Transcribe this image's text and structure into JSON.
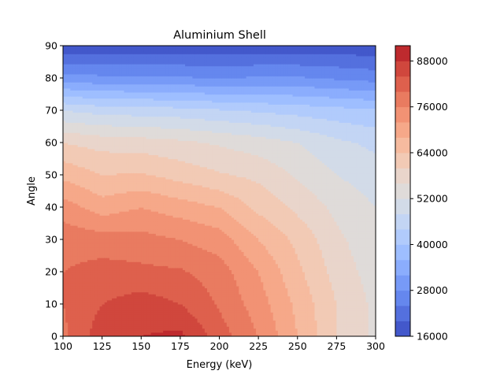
{
  "chart_data": {
    "type": "contourf",
    "title": "Aluminium Shell",
    "xlabel": "Energy (keV)",
    "ylabel": "Angle",
    "xlim": [
      100,
      300
    ],
    "ylim": [
      0,
      90
    ],
    "xticks": [
      "100",
      "125",
      "150",
      "175",
      "200",
      "225",
      "250",
      "275",
      "300"
    ],
    "yticks": [
      "0",
      "10",
      "20",
      "30",
      "40",
      "50",
      "60",
      "70",
      "80",
      "90"
    ],
    "x": [
      100,
      125,
      150,
      175,
      200,
      225,
      250,
      275,
      300
    ],
    "y": [
      0,
      10,
      20,
      30,
      40,
      50,
      60,
      70,
      80,
      90
    ],
    "z": [
      [
        79000,
        86500,
        88000,
        89000,
        82000,
        76000,
        68000,
        60000,
        55000
      ],
      [
        80000,
        84000,
        86000,
        84000,
        79500,
        74000,
        67000,
        60000,
        55000
      ],
      [
        80000,
        81500,
        81000,
        80500,
        78000,
        72000,
        65000,
        58500,
        54000
      ],
      [
        78500,
        78000,
        77500,
        76000,
        74000,
        68000,
        63000,
        57000,
        53000
      ],
      [
        74000,
        70000,
        72000,
        70000,
        68000,
        63000,
        59000,
        55000,
        52000
      ],
      [
        67000,
        64000,
        64500,
        62500,
        60500,
        59000,
        55500,
        52000,
        50000
      ],
      [
        60000,
        58500,
        58000,
        57000,
        55500,
        54000,
        52000,
        49000,
        47000
      ],
      [
        48000,
        46500,
        46000,
        45500,
        44500,
        43500,
        42500,
        41500,
        40500
      ],
      [
        30000,
        29000,
        29000,
        28500,
        28000,
        28500,
        28500,
        27500,
        26500
      ],
      [
        17000,
        17000,
        17000,
        17500,
        17500,
        17500,
        17500,
        17500,
        17000
      ]
    ],
    "levels": [
      16000,
      20000,
      24000,
      28000,
      32000,
      36000,
      40000,
      44000,
      48000,
      52000,
      56000,
      60000,
      64000,
      68000,
      72000,
      76000,
      80000,
      84000,
      88000,
      92000
    ],
    "colorbar_ticks": [
      "16000",
      "28000",
      "40000",
      "52000",
      "64000",
      "76000",
      "88000"
    ],
    "colormap": "coolwarm",
    "colors": [
      "#4358cb",
      "#5470de",
      "#6587ee",
      "#779af7",
      "#8badfd",
      "#9ebeff",
      "#b1cbfc",
      "#c3d5f4",
      "#d2dbe8",
      "#dfdbd9",
      "#e9d5cb",
      "#f2cab5",
      "#f6bb9f",
      "#f6a889",
      "#f29274",
      "#e97b60",
      "#de604d",
      "#d0473d",
      "#be2a2e"
    ]
  }
}
